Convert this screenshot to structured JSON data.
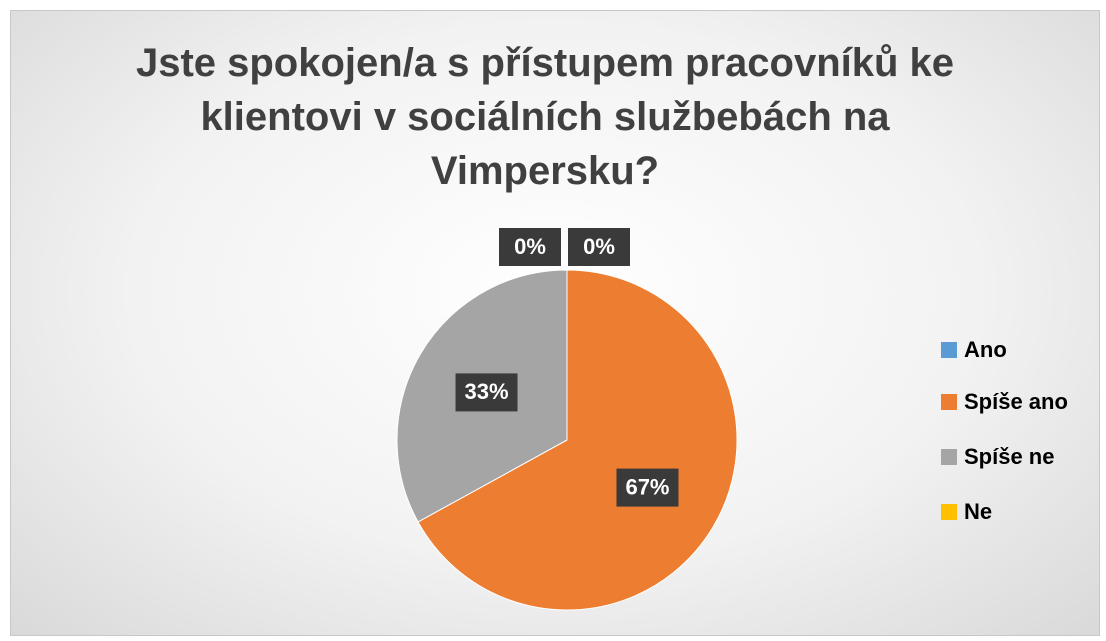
{
  "chart_data": {
    "type": "pie",
    "title": "Jste spokojen/a s přístupem pracovníků ke klientovi v sociálních službebách na Vimpersku?",
    "categories": [
      "Ano",
      "Spíše ano",
      "Spíše ne",
      "Ne"
    ],
    "values": [
      0,
      67,
      33,
      0
    ],
    "value_labels": [
      "0%",
      "67%",
      "33%",
      "0%"
    ],
    "colors": [
      "#5b9bd5",
      "#ed7d31",
      "#a5a5a5",
      "#ffc000"
    ],
    "legend": "right"
  }
}
